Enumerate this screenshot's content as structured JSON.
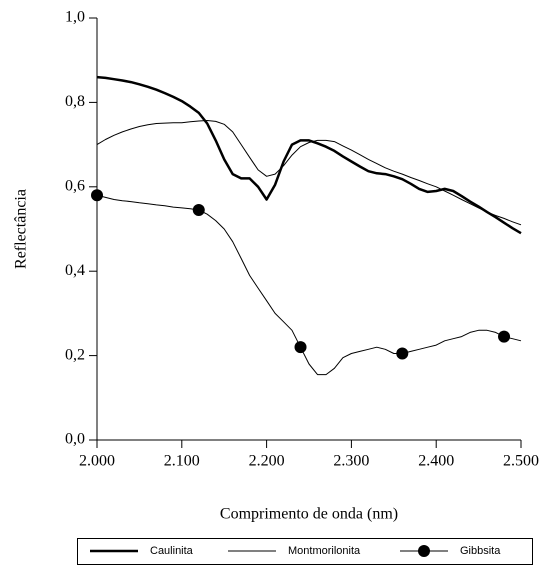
{
  "chart_data": {
    "type": "line",
    "y_label": "Reflectância",
    "x_label": "Comprimento de onda (nm)",
    "x": [
      2000,
      2010,
      2020,
      2030,
      2040,
      2050,
      2060,
      2070,
      2080,
      2090,
      2100,
      2110,
      2120,
      2130,
      2140,
      2150,
      2160,
      2170,
      2180,
      2190,
      2200,
      2210,
      2220,
      2230,
      2240,
      2250,
      2260,
      2270,
      2280,
      2290,
      2300,
      2310,
      2320,
      2330,
      2340,
      2350,
      2360,
      2370,
      2380,
      2390,
      2400,
      2410,
      2420,
      2430,
      2440,
      2450,
      2460,
      2470,
      2480,
      2490,
      2500
    ],
    "series": [
      {
        "name": "Caulinita",
        "color": "#000000",
        "width": 2.5,
        "marker": "none",
        "values": [
          0.86,
          0.858,
          0.855,
          0.852,
          0.848,
          0.843,
          0.837,
          0.83,
          0.822,
          0.813,
          0.803,
          0.79,
          0.775,
          0.75,
          0.71,
          0.665,
          0.63,
          0.62,
          0.62,
          0.6,
          0.57,
          0.605,
          0.66,
          0.7,
          0.71,
          0.71,
          0.703,
          0.695,
          0.685,
          0.672,
          0.66,
          0.648,
          0.637,
          0.632,
          0.63,
          0.625,
          0.618,
          0.607,
          0.595,
          0.588,
          0.59,
          0.595,
          0.59,
          0.578,
          0.565,
          0.553,
          0.54,
          0.528,
          0.515,
          0.502,
          0.49
        ]
      },
      {
        "name": "Montmorilonita",
        "color": "#000000",
        "width": 1,
        "marker": "none",
        "values": [
          0.7,
          0.712,
          0.722,
          0.73,
          0.737,
          0.743,
          0.747,
          0.75,
          0.751,
          0.752,
          0.752,
          0.754,
          0.756,
          0.757,
          0.755,
          0.748,
          0.73,
          0.7,
          0.67,
          0.64,
          0.625,
          0.63,
          0.65,
          0.675,
          0.695,
          0.705,
          0.71,
          0.71,
          0.707,
          0.697,
          0.687,
          0.676,
          0.665,
          0.655,
          0.645,
          0.637,
          0.63,
          0.622,
          0.615,
          0.607,
          0.6,
          0.59,
          0.58,
          0.57,
          0.56,
          0.55,
          0.54,
          0.532,
          0.525,
          0.517,
          0.51
        ]
      },
      {
        "name": "Gibbsita",
        "color": "#000000",
        "width": 1,
        "marker": "circle",
        "values": [
          0.58,
          0.575,
          0.57,
          0.567,
          0.565,
          0.562,
          0.56,
          0.557,
          0.555,
          0.552,
          0.55,
          0.548,
          0.545,
          0.535,
          0.52,
          0.5,
          0.47,
          0.43,
          0.39,
          0.36,
          0.33,
          0.3,
          0.28,
          0.26,
          0.22,
          0.18,
          0.155,
          0.155,
          0.17,
          0.195,
          0.205,
          0.21,
          0.215,
          0.22,
          0.215,
          0.205,
          0.205,
          0.21,
          0.215,
          0.22,
          0.225,
          0.235,
          0.24,
          0.245,
          0.255,
          0.26,
          0.26,
          0.255,
          0.245,
          0.24,
          0.235
        ]
      }
    ],
    "xlim": [
      2000,
      2500
    ],
    "xticks": [
      {
        "value": 2000,
        "label": "2.000"
      },
      {
        "value": 2100,
        "label": "2.100"
      },
      {
        "value": 2200,
        "label": "2.200"
      },
      {
        "value": 2300,
        "label": "2.300"
      },
      {
        "value": 2400,
        "label": "2.400"
      },
      {
        "value": 2500,
        "label": "2.500"
      }
    ],
    "ylim": [
      0,
      1
    ],
    "yticks": [
      {
        "value": 0,
        "label": "0,0"
      },
      {
        "value": 0.2,
        "label": "0,2"
      },
      {
        "value": 0.4,
        "label": "0,4"
      },
      {
        "value": 0.6,
        "label": "0,6"
      },
      {
        "value": 0.8,
        "label": "0,8"
      },
      {
        "value": 1,
        "label": "1,0"
      }
    ],
    "legend": "bottom"
  }
}
